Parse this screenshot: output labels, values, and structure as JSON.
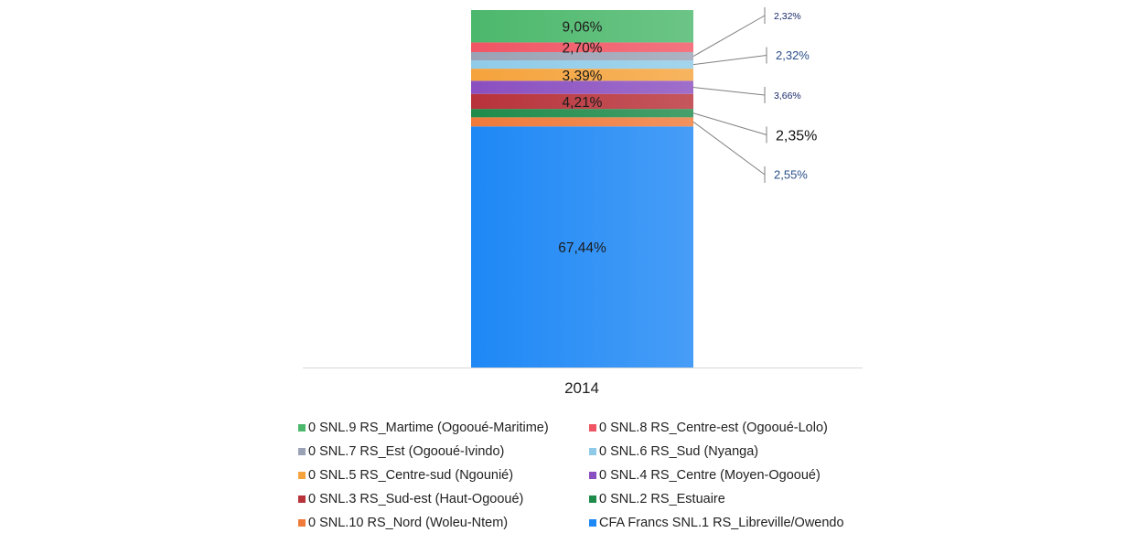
{
  "chart_data": {
    "type": "bar",
    "stacked": true,
    "categories": [
      "2014"
    ],
    "ylim": [
      0,
      100
    ],
    "grid": false,
    "legend_position": "bottom",
    "series": [
      {
        "name": "CFA Francs SNL.1 RS_Libreville/Owendo",
        "values": [
          67.44
        ],
        "label": "67,44%",
        "color": "#1e88f5"
      },
      {
        "name": "0 SNL.10 RS_Nord (Woleu-Ntem)",
        "values": [
          2.55
        ],
        "label": "2,55%",
        "color": "#ef7a3a"
      },
      {
        "name": "0 SNL.2 RS_Estuaire",
        "values": [
          2.35
        ],
        "label": "2,35%",
        "color": "#1e8b4a"
      },
      {
        "name": "0 SNL.3 RS_Sud-est (Haut-Ogooué)",
        "values": [
          4.21
        ],
        "label": "4,21%",
        "color": "#b8323a"
      },
      {
        "name": "0 SNL.4 RS_Centre (Moyen-Ogooué)",
        "values": [
          3.66
        ],
        "label": "3,66%",
        "color": "#8a4fc0"
      },
      {
        "name": "0 SNL.5 RS_Centre-sud (Ngounié)",
        "values": [
          3.39
        ],
        "label": "3,39%",
        "color": "#f5a33c"
      },
      {
        "name": "0 SNL.6 RS_Sud (Nyanga)",
        "values": [
          2.32
        ],
        "label": "2,32%",
        "color": "#8fcbe8"
      },
      {
        "name": "0 SNL.7 RS_Est (Ogooué-Ivindo)",
        "values": [
          2.32
        ],
        "label": "2,32%",
        "color": "#9aa2b5"
      },
      {
        "name": "0 SNL.8 RS_Centre-est (Ogooué-Lolo)",
        "values": [
          2.7
        ],
        "label": "2,70%",
        "color": "#f05564"
      },
      {
        "name": "0 SNL.9 RS_Martime (Ogooué-Maritime)",
        "values": [
          9.06
        ],
        "label": "9,06%",
        "color": "#4cb86c"
      }
    ],
    "legend_order": [
      9,
      8,
      7,
      6,
      5,
      4,
      3,
      2,
      1,
      0
    ],
    "external_labels": [
      {
        "series_index": 7,
        "text": "2,32%",
        "color": "#1a2a6c",
        "size": "small"
      },
      {
        "series_index": 6,
        "text": "2,32%",
        "color": "#2a4f8a",
        "size": "medium"
      },
      {
        "series_index": 4,
        "text": "3,66%",
        "color": "#1a2a6c",
        "size": "small"
      },
      {
        "series_index": 2,
        "text": "2,35%",
        "color": "#111111",
        "size": "large"
      },
      {
        "series_index": 1,
        "text": "2,55%",
        "color": "#2a4f8a",
        "size": "medium"
      }
    ]
  }
}
